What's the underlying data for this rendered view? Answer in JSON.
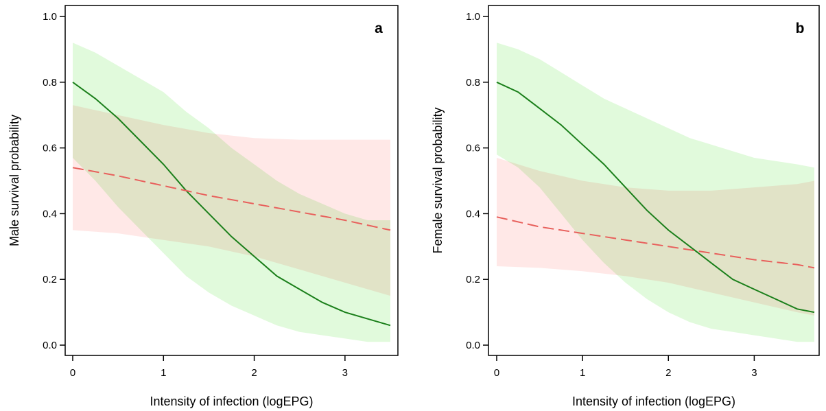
{
  "chart_data": [
    {
      "type": "line",
      "panel_label": "a",
      "xlabel": "Intensity of infection (logEPG)",
      "ylabel": "Male survival probability",
      "xlim": [
        0,
        3.5
      ],
      "ylim": [
        0,
        1
      ],
      "xticks": [
        0,
        1,
        2,
        3
      ],
      "yticks": [
        0.0,
        0.2,
        0.4,
        0.6,
        0.8,
        1.0
      ],
      "xtick_labels": [
        "0",
        "1",
        "2",
        "3"
      ],
      "ytick_labels": [
        "0.0",
        "0.2",
        "0.4",
        "0.6",
        "0.8",
        "1.0"
      ],
      "grid": false,
      "series": [
        {
          "style": "solid",
          "color": "#1a7f1a",
          "band_color": "#c8f5c0",
          "x": [
            0,
            0.25,
            0.5,
            0.75,
            1.0,
            1.25,
            1.5,
            1.75,
            2.0,
            2.25,
            2.5,
            2.75,
            3.0,
            3.25,
            3.5
          ],
          "y": [
            0.8,
            0.75,
            0.69,
            0.62,
            0.55,
            0.47,
            0.4,
            0.33,
            0.27,
            0.21,
            0.17,
            0.13,
            0.1,
            0.08,
            0.06
          ],
          "lower": [
            0.57,
            0.5,
            0.42,
            0.35,
            0.28,
            0.21,
            0.16,
            0.12,
            0.09,
            0.06,
            0.04,
            0.03,
            0.02,
            0.01,
            0.01
          ],
          "upper": [
            0.92,
            0.89,
            0.85,
            0.81,
            0.77,
            0.71,
            0.66,
            0.6,
            0.55,
            0.5,
            0.46,
            0.43,
            0.4,
            0.38,
            0.38
          ]
        },
        {
          "style": "dashed",
          "color": "#e8605c",
          "band_color": "#ffd6d4",
          "x": [
            0,
            0.5,
            1.0,
            1.5,
            2.0,
            2.5,
            3.0,
            3.5
          ],
          "y": [
            0.54,
            0.515,
            0.485,
            0.455,
            0.43,
            0.405,
            0.38,
            0.35
          ],
          "lower": [
            0.35,
            0.34,
            0.32,
            0.3,
            0.27,
            0.23,
            0.19,
            0.15
          ],
          "upper": [
            0.73,
            0.7,
            0.67,
            0.645,
            0.63,
            0.625,
            0.625,
            0.625
          ]
        }
      ]
    },
    {
      "type": "line",
      "panel_label": "b",
      "xlabel": "Intensity of infection (logEPG)",
      "ylabel": "Female survival probability",
      "xlim": [
        0,
        3.7
      ],
      "ylim": [
        0,
        1
      ],
      "xticks": [
        0,
        1,
        2,
        3
      ],
      "yticks": [
        0.0,
        0.2,
        0.4,
        0.6,
        0.8,
        1.0
      ],
      "xtick_labels": [
        "0",
        "1",
        "2",
        "3"
      ],
      "ytick_labels": [
        "0.0",
        "0.2",
        "0.4",
        "0.6",
        "0.8",
        "1.0"
      ],
      "grid": false,
      "series": [
        {
          "style": "solid",
          "color": "#1a7f1a",
          "band_color": "#c8f5c0",
          "x": [
            0,
            0.25,
            0.5,
            0.75,
            1.0,
            1.25,
            1.5,
            1.75,
            2.0,
            2.25,
            2.5,
            2.75,
            3.0,
            3.25,
            3.5,
            3.7
          ],
          "y": [
            0.8,
            0.77,
            0.72,
            0.67,
            0.61,
            0.55,
            0.48,
            0.41,
            0.35,
            0.3,
            0.25,
            0.2,
            0.17,
            0.14,
            0.11,
            0.1
          ],
          "lower": [
            0.58,
            0.54,
            0.48,
            0.4,
            0.32,
            0.25,
            0.19,
            0.14,
            0.1,
            0.07,
            0.05,
            0.04,
            0.03,
            0.02,
            0.01,
            0.01
          ],
          "upper": [
            0.92,
            0.9,
            0.87,
            0.83,
            0.79,
            0.75,
            0.72,
            0.69,
            0.66,
            0.63,
            0.61,
            0.59,
            0.57,
            0.56,
            0.55,
            0.54
          ]
        },
        {
          "style": "dashed",
          "color": "#e8605c",
          "band_color": "#ffd6d4",
          "x": [
            0,
            0.5,
            1.0,
            1.5,
            2.0,
            2.5,
            3.0,
            3.5,
            3.7
          ],
          "y": [
            0.39,
            0.36,
            0.34,
            0.32,
            0.3,
            0.28,
            0.26,
            0.245,
            0.235
          ],
          "lower": [
            0.24,
            0.235,
            0.225,
            0.21,
            0.19,
            0.16,
            0.13,
            0.1,
            0.09
          ],
          "upper": [
            0.57,
            0.53,
            0.5,
            0.48,
            0.47,
            0.47,
            0.48,
            0.49,
            0.5
          ]
        }
      ]
    }
  ]
}
